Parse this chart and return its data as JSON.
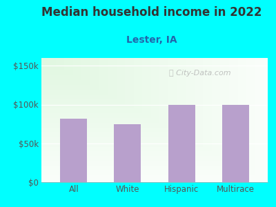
{
  "title": "Median household income in 2022",
  "subtitle": "Lester, IA",
  "categories": [
    "All",
    "White",
    "Hispanic",
    "Multirace"
  ],
  "values": [
    82000,
    75000,
    100000,
    100000
  ],
  "bar_color": "#b8a0cc",
  "background_color": "#00FFFF",
  "title_color": "#333333",
  "subtitle_color": "#2266aa",
  "tick_color": "#555555",
  "ylim": [
    0,
    160000
  ],
  "yticks": [
    0,
    50000,
    100000,
    150000
  ],
  "ytick_labels": [
    "$0",
    "$50k",
    "$100k",
    "$150k"
  ],
  "watermark": "City-Data.com",
  "title_fontsize": 12,
  "subtitle_fontsize": 10,
  "tick_fontsize": 8.5
}
